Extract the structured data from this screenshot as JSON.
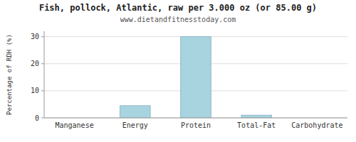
{
  "chart_data": {
    "type": "bar",
    "title": "Fish, pollock, Atlantic, raw per 3.000 oz (or 85.00 g)",
    "subtitle": "www.dietandfitnesstoday.com",
    "categories": [
      "Manganese",
      "Energy",
      "Protein",
      "Total-Fat",
      "Carbohydrate"
    ],
    "values": [
      0.0,
      4.5,
      30.0,
      1.0,
      0.0
    ],
    "color": "#a8d4e0",
    "ylabel": "Percentage of RDH (%)",
    "ylim": [
      0,
      32
    ],
    "yticks": [
      0,
      10,
      20,
      30
    ],
    "grid": true
  }
}
